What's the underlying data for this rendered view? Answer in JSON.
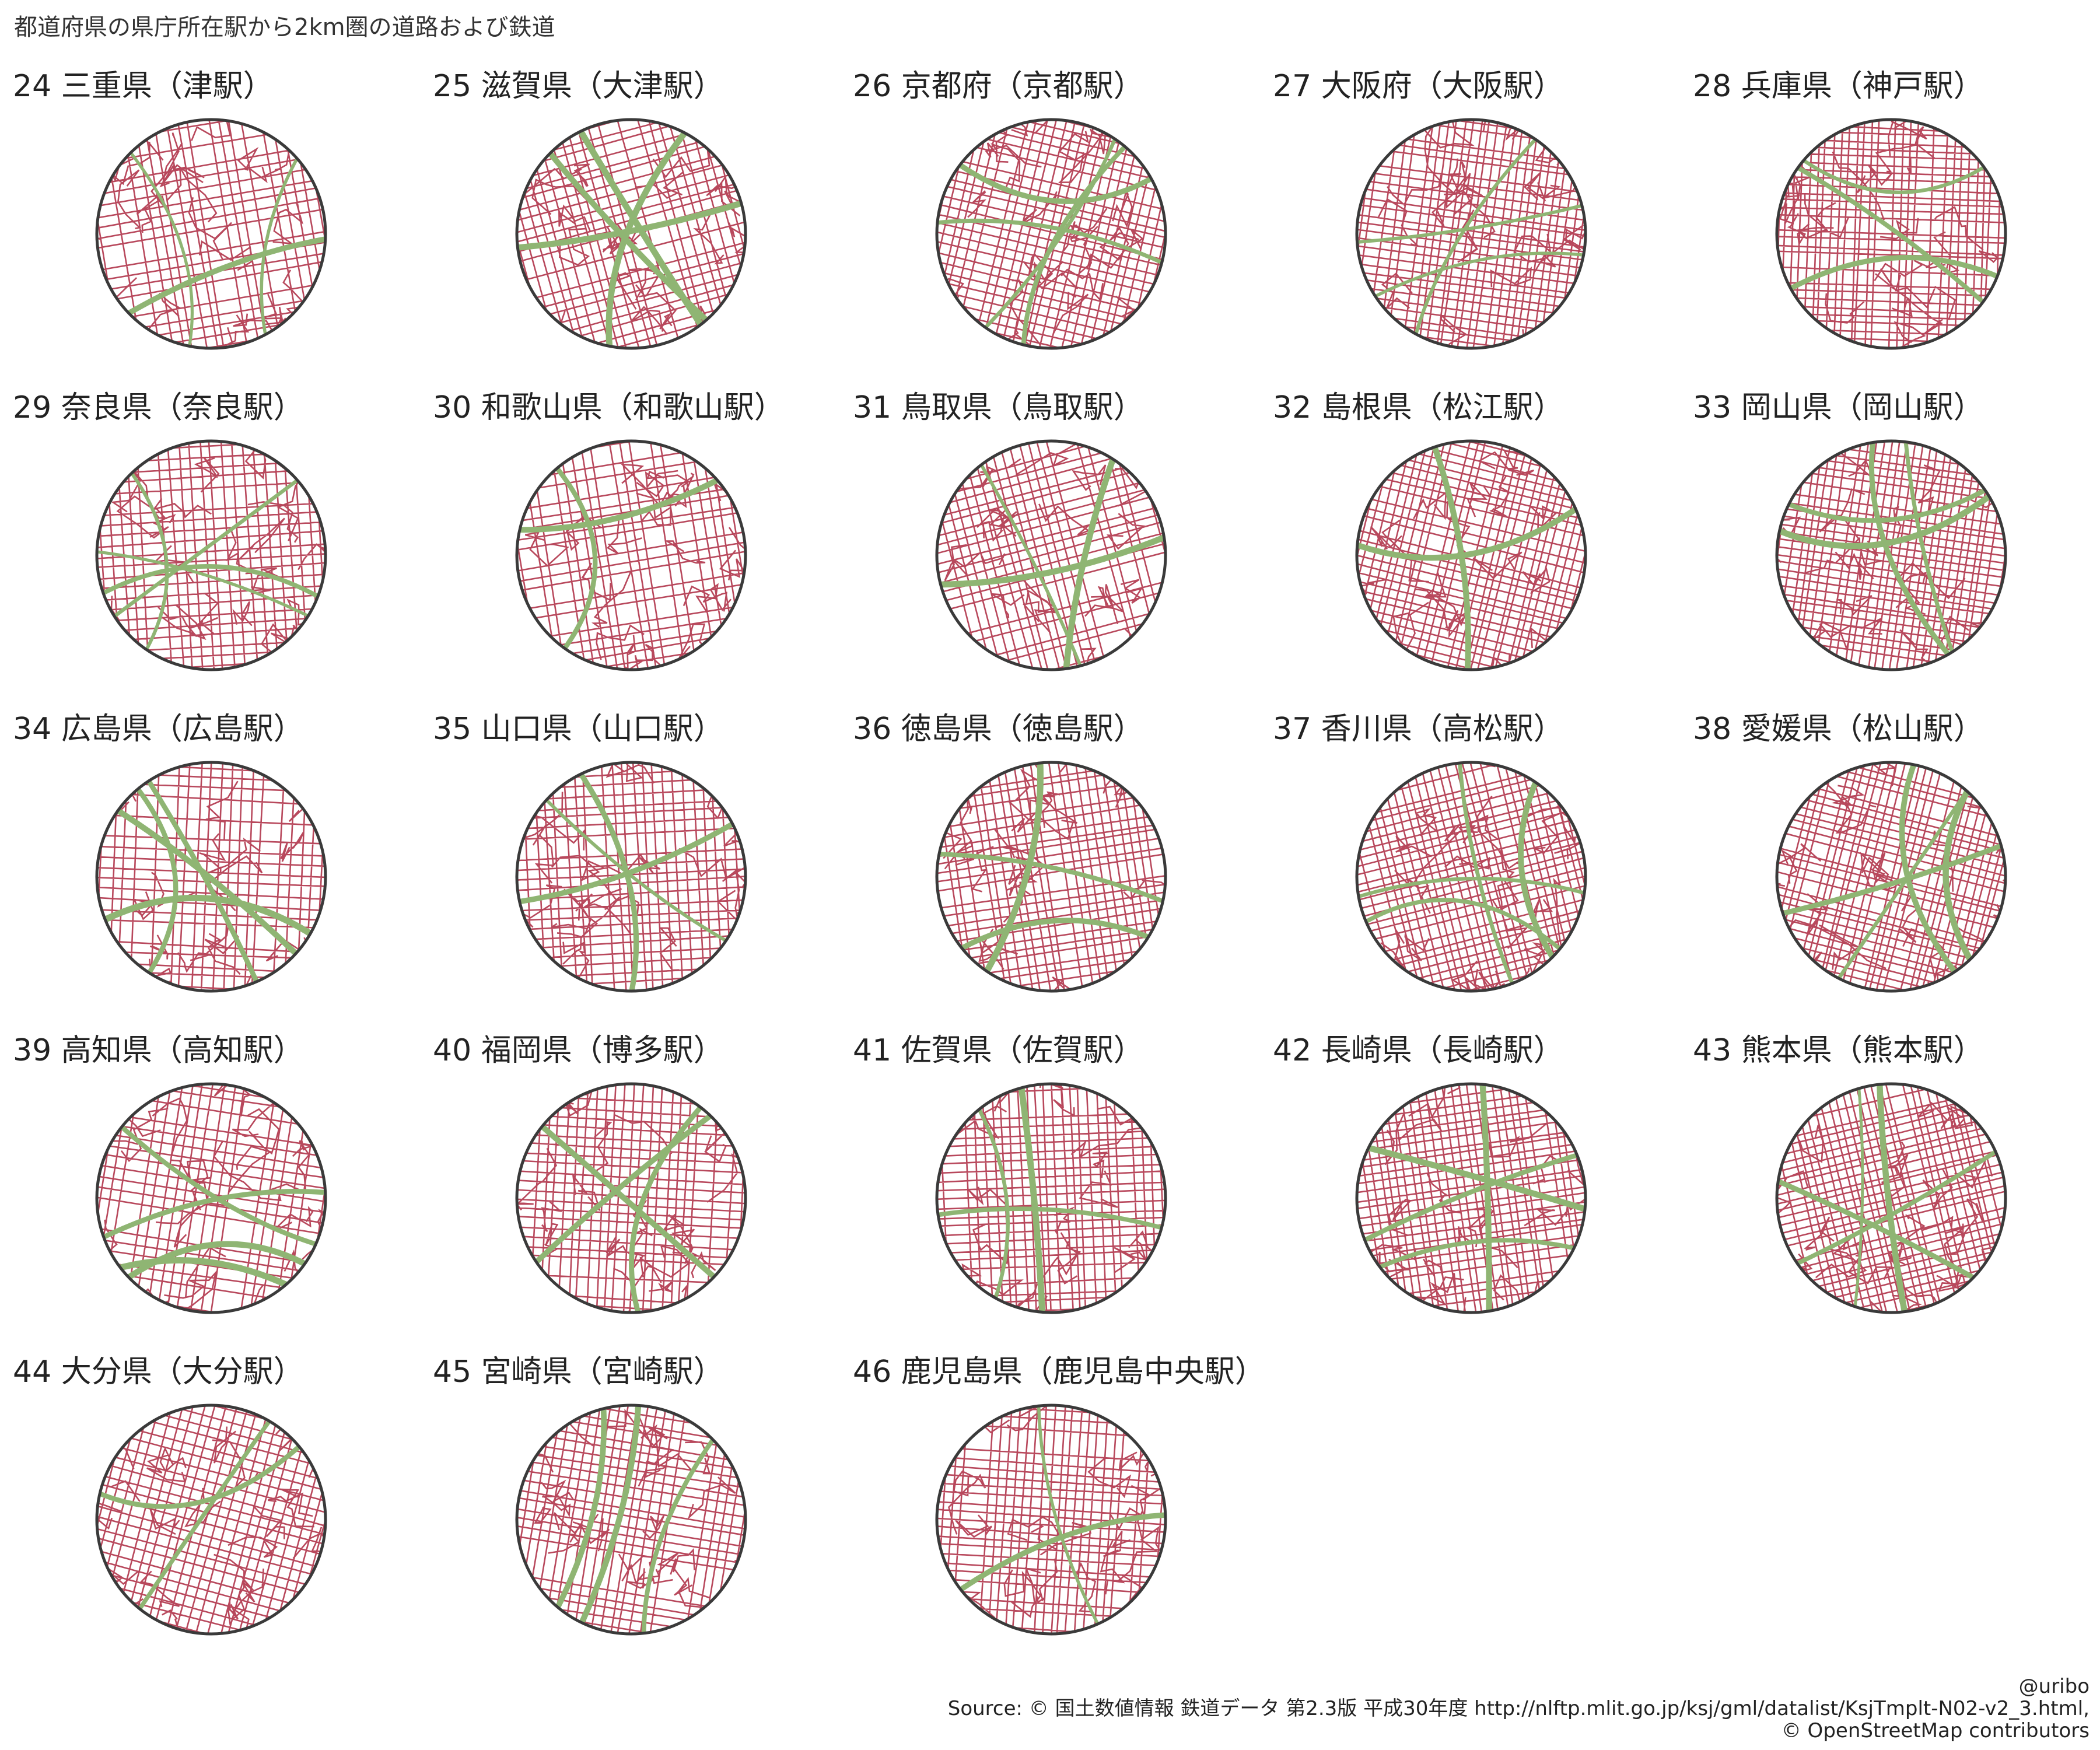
{
  "title": "都道府県の県庁所在駅から2km圏の道路および鉄道",
  "colors": {
    "road": "#B8485C",
    "rail": "#8FB573",
    "circle": "#3a3a3a",
    "background": "#ffffff"
  },
  "panels": [
    {
      "label": "24 三重県（津駅）"
    },
    {
      "label": "25 滋賀県（大津駅）"
    },
    {
      "label": "26 京都府（京都駅）"
    },
    {
      "label": "27 大阪府（大阪駅）"
    },
    {
      "label": "28 兵庫県（神戸駅）"
    },
    {
      "label": "29 奈良県（奈良駅）"
    },
    {
      "label": "30 和歌山県（和歌山駅）"
    },
    {
      "label": "31 鳥取県（鳥取駅）"
    },
    {
      "label": "32 島根県（松江駅）"
    },
    {
      "label": "33 岡山県（岡山駅）"
    },
    {
      "label": "34 広島県（広島駅）"
    },
    {
      "label": "35 山口県（山口駅）"
    },
    {
      "label": "36 徳島県（徳島駅）"
    },
    {
      "label": "37 香川県（高松駅）"
    },
    {
      "label": "38 愛媛県（松山駅）"
    },
    {
      "label": "39 高知県（高知駅）"
    },
    {
      "label": "40 福岡県（博多駅）"
    },
    {
      "label": "41 佐賀県（佐賀駅）"
    },
    {
      "label": "42 長崎県（長崎駅）"
    },
    {
      "label": "43 熊本県（熊本駅）"
    },
    {
      "label": "44 大分県（大分駅）"
    },
    {
      "label": "45 宮崎県（宮崎駅）"
    },
    {
      "label": "46 鹿児島県（鹿児島中央駅）"
    }
  ],
  "credits": {
    "author": "@uribo",
    "source_line": "Source: © 国土数値情報 鉄道データ 第2.3版 平成30年度 http://nlftp.mlit.go.jp/ksj/gml/datalist/KsjTmplt-N02-v2_3.html,",
    "osm_line": "© OpenStreetMap contributors"
  }
}
